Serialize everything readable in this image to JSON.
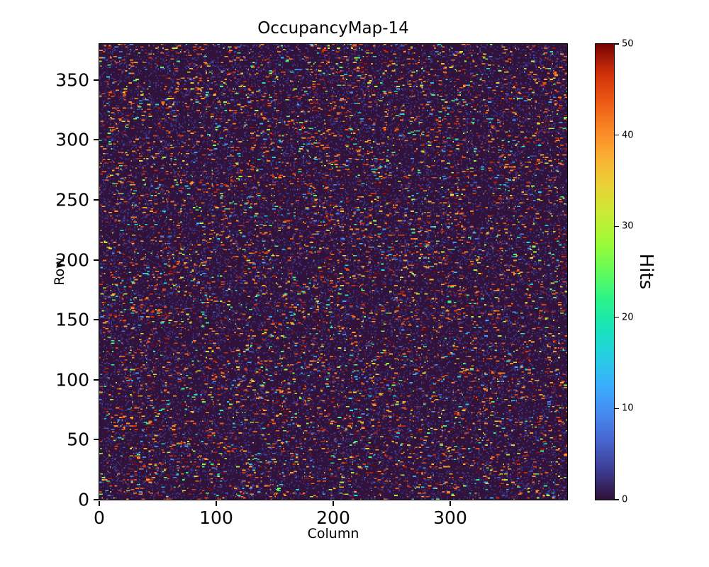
{
  "figure": {
    "title": "OccupancyMap-14"
  },
  "chart_data": {
    "type": "heatmap",
    "title": "OccupancyMap-14",
    "xlabel": "Column",
    "ylabel": "Row",
    "x_range": [
      0,
      400
    ],
    "y_range": [
      0,
      380
    ],
    "x_ticks": [
      0,
      100,
      200,
      300
    ],
    "y_ticks": [
      0,
      50,
      100,
      150,
      200,
      250,
      300,
      350
    ],
    "colorbar": {
      "label": "Hits",
      "min": 0,
      "max": 50,
      "ticks": [
        0,
        10,
        20,
        30,
        40,
        50
      ]
    },
    "colormap": {
      "name": "turbo",
      "stops": [
        [
          0.0,
          [
            48,
            18,
            59
          ]
        ],
        [
          0.0625,
          [
            62,
            60,
            146
          ]
        ],
        [
          0.125,
          [
            70,
            100,
            203
          ]
        ],
        [
          0.1875,
          [
            70,
            138,
            241
          ]
        ],
        [
          0.25,
          [
            59,
            174,
            253
          ]
        ],
        [
          0.3125,
          [
            38,
            206,
            226
          ]
        ],
        [
          0.375,
          [
            24,
            228,
            186
          ]
        ],
        [
          0.4375,
          [
            42,
            243,
            138
          ]
        ],
        [
          0.5,
          [
            98,
            251,
            90
          ]
        ],
        [
          0.5625,
          [
            155,
            251,
            56
          ]
        ],
        [
          0.625,
          [
            200,
            237,
            52
          ]
        ],
        [
          0.6875,
          [
            233,
            211,
            54
          ]
        ],
        [
          0.75,
          [
            250,
            178,
            52
          ]
        ],
        [
          0.8125,
          [
            250,
            135,
            38
          ]
        ],
        [
          0.875,
          [
            236,
            90,
            22
          ]
        ],
        [
          0.9375,
          [
            207,
            49,
            9
          ]
        ],
        [
          1.0,
          [
            122,
            4,
            3
          ]
        ]
      ]
    },
    "generation": {
      "pattern": "sparse random speckles (short horizontal dashes of hits) over a uniform near-zero dark background",
      "grid_cols": 400,
      "grid_rows": 380,
      "background_value": 0,
      "seed": 14,
      "speckle_probability": 0.05,
      "speckle_run_length": [
        1,
        3
      ],
      "high_value_bias": 0.55,
      "high_value_range": [
        38,
        50
      ],
      "noise_probability": 0.15,
      "noise_value_range": [
        1,
        4
      ],
      "value_range": [
        1,
        50
      ]
    }
  }
}
